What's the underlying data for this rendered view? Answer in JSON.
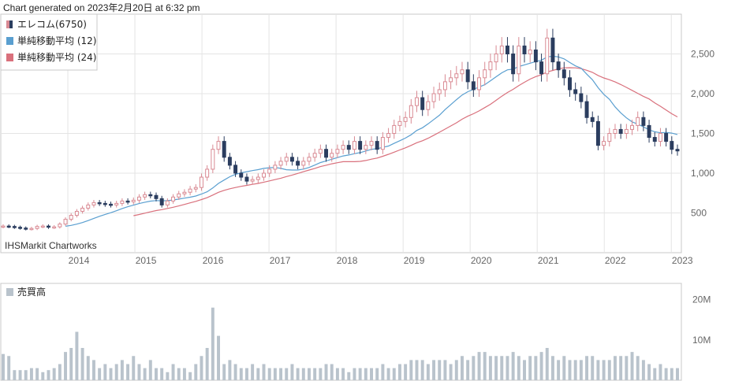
{
  "header": {
    "generated_text": "Chart generated on 2023年2月20日 at 6:32 pm"
  },
  "credit": "IHSMarkit Chartworks",
  "colors": {
    "up": "#d98a93",
    "down": "#2b3d5f",
    "ma12": "#5a9fd0",
    "ma24": "#d9707c",
    "volume": "#b9c3cc",
    "grid": "#e4e4e4",
    "border": "#c8c8c8"
  },
  "chart_data": [
    {
      "type": "candlestick",
      "legend_placement": "top-left",
      "legend": [
        {
          "label": "エレコム(6750)",
          "icon": "candle-icon"
        },
        {
          "label": "単純移動平均 (12)",
          "icon": "blue-square-icon"
        },
        {
          "label": "単純移動平均 (24)",
          "icon": "red-square-icon"
        }
      ],
      "x_tick_labels": [
        "2014",
        "2015",
        "2016",
        "2017",
        "2018",
        "2019",
        "2020",
        "2021",
        "2022",
        "2023"
      ],
      "y_tick_labels": [
        "500",
        "1,000",
        "1,500",
        "2,000",
        "2,500"
      ],
      "y_ticks": [
        500,
        1000,
        1500,
        2000,
        2500
      ],
      "ylim": [
        0,
        3000
      ],
      "xlim": [
        2013.0,
        2023.15
      ],
      "grid": true,
      "closes": [
        335,
        330,
        320,
        310,
        300,
        305,
        330,
        335,
        320,
        325,
        360,
        420,
        470,
        520,
        560,
        600,
        630,
        620,
        610,
        600,
        620,
        650,
        640,
        660,
        700,
        730,
        720,
        680,
        600,
        650,
        700,
        740,
        760,
        800,
        820,
        950,
        1050,
        1300,
        1400,
        1200,
        1100,
        1000,
        950,
        900,
        920,
        950,
        1000,
        1050,
        1100,
        1150,
        1200,
        1150,
        1100,
        1150,
        1200,
        1250,
        1300,
        1200,
        1250,
        1300,
        1350,
        1300,
        1400,
        1300,
        1350,
        1400,
        1300,
        1450,
        1500,
        1600,
        1650,
        1700,
        1850,
        1950,
        1800,
        1900,
        2000,
        2050,
        2150,
        2200,
        2250,
        2300,
        2150,
        2050,
        2200,
        2300,
        2400,
        2500,
        2600,
        2500,
        2250,
        2600,
        2500,
        2550,
        2400,
        2250,
        2700,
        2400,
        2300,
        2200,
        2050,
        2000,
        1900,
        1700,
        1650,
        1350,
        1400,
        1500,
        1550,
        1500,
        1550,
        1600,
        1700,
        1600,
        1450,
        1400,
        1500,
        1400,
        1300,
        1280
      ],
      "volume_y_tick_labels": [
        "10M",
        "20M"
      ],
      "volume_ticks": [
        10,
        20
      ],
      "volume_ylim": [
        0,
        24
      ],
      "volumes": [
        6.5,
        6,
        2.5,
        2.5,
        2.5,
        3,
        3,
        2,
        2.5,
        3,
        4,
        7,
        8,
        12,
        8,
        6,
        5,
        3,
        4,
        3,
        4,
        5,
        4,
        6,
        4,
        3,
        5,
        3,
        3,
        2,
        4,
        3,
        3,
        2,
        4,
        6,
        8,
        18,
        11,
        4,
        5,
        4,
        3,
        3,
        4,
        3,
        4,
        3,
        3,
        3,
        3,
        4,
        3,
        3,
        3,
        3,
        3,
        4,
        4,
        3,
        3,
        2,
        3,
        3,
        3,
        3,
        3,
        4,
        3,
        3,
        4,
        4,
        5,
        5,
        5,
        4,
        5,
        5,
        5,
        4,
        5,
        6,
        5,
        6,
        7,
        7,
        6,
        6,
        6,
        6,
        7,
        6,
        5,
        6,
        6,
        7,
        8,
        6,
        5,
        6,
        5,
        5,
        5,
        6,
        6,
        5,
        5,
        5,
        6,
        6,
        6,
        7,
        6,
        5,
        4,
        3,
        4,
        3,
        3,
        3
      ]
    },
    {
      "type": "bar",
      "title": "売買高"
    }
  ]
}
